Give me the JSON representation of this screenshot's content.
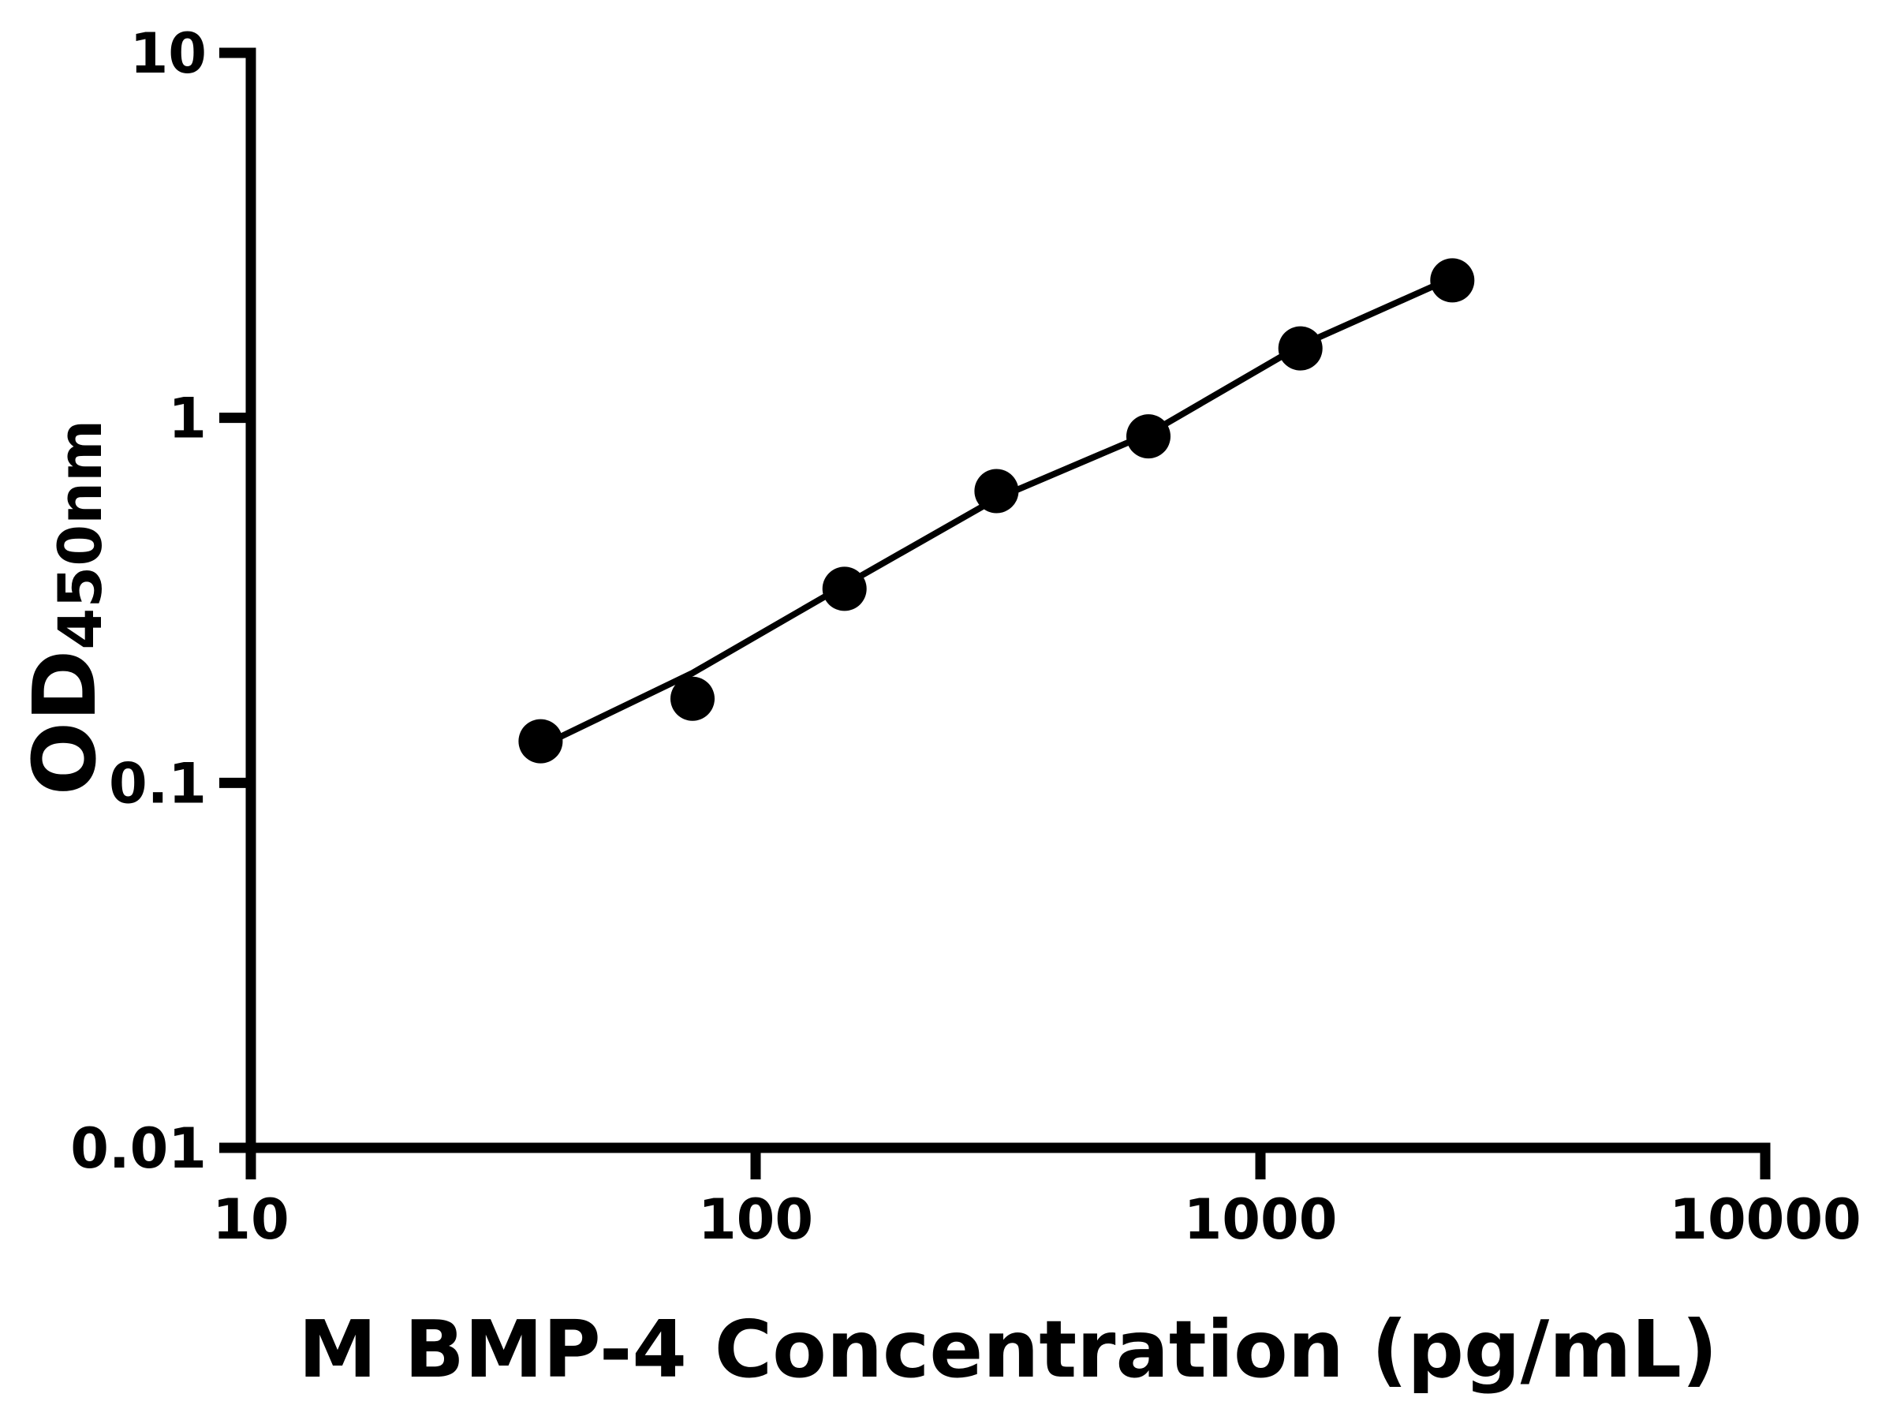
{
  "colors": {
    "ink": "#000000",
    "background": "#ffffff"
  },
  "chart_data": {
    "type": "scatter",
    "title": "",
    "xlabel": "M BMP-4 Concentration (pg/mL)",
    "ylabel": "OD450nm",
    "ylabel_main": "OD",
    "ylabel_sub": "450nm",
    "x_scale": "log10",
    "y_scale": "log10",
    "xlim": [
      10,
      10000
    ],
    "ylim": [
      0.01,
      10
    ],
    "grid": false,
    "legend": false,
    "x_ticks": [
      {
        "value": 10,
        "label": "10"
      },
      {
        "value": 100,
        "label": "100"
      },
      {
        "value": 1000,
        "label": "1000"
      },
      {
        "value": 10000,
        "label": "10000"
      }
    ],
    "y_ticks": [
      {
        "value": 10,
        "label": "10"
      },
      {
        "value": 1,
        "label": "1"
      },
      {
        "value": 0.1,
        "label": "0.1"
      },
      {
        "value": 0.01,
        "label": "0.01"
      }
    ],
    "series": [
      {
        "name": "standards",
        "type": "scatter",
        "marker": "filled-circle",
        "color": "#000000",
        "points": [
          {
            "x": 37.5,
            "y": 0.13
          },
          {
            "x": 75,
            "y": 0.17
          },
          {
            "x": 150,
            "y": 0.34
          },
          {
            "x": 300,
            "y": 0.63
          },
          {
            "x": 600,
            "y": 0.89
          },
          {
            "x": 1200,
            "y": 1.55
          },
          {
            "x": 2400,
            "y": 2.38
          }
        ]
      },
      {
        "name": "fit-curve",
        "type": "line",
        "color": "#000000",
        "points": [
          {
            "x": 38,
            "y": 0.127
          },
          {
            "x": 75,
            "y": 0.2
          },
          {
            "x": 150,
            "y": 0.348
          },
          {
            "x": 300,
            "y": 0.601
          },
          {
            "x": 600,
            "y": 0.904
          },
          {
            "x": 1200,
            "y": 1.578
          },
          {
            "x": 2400,
            "y": 2.42
          }
        ]
      }
    ]
  }
}
